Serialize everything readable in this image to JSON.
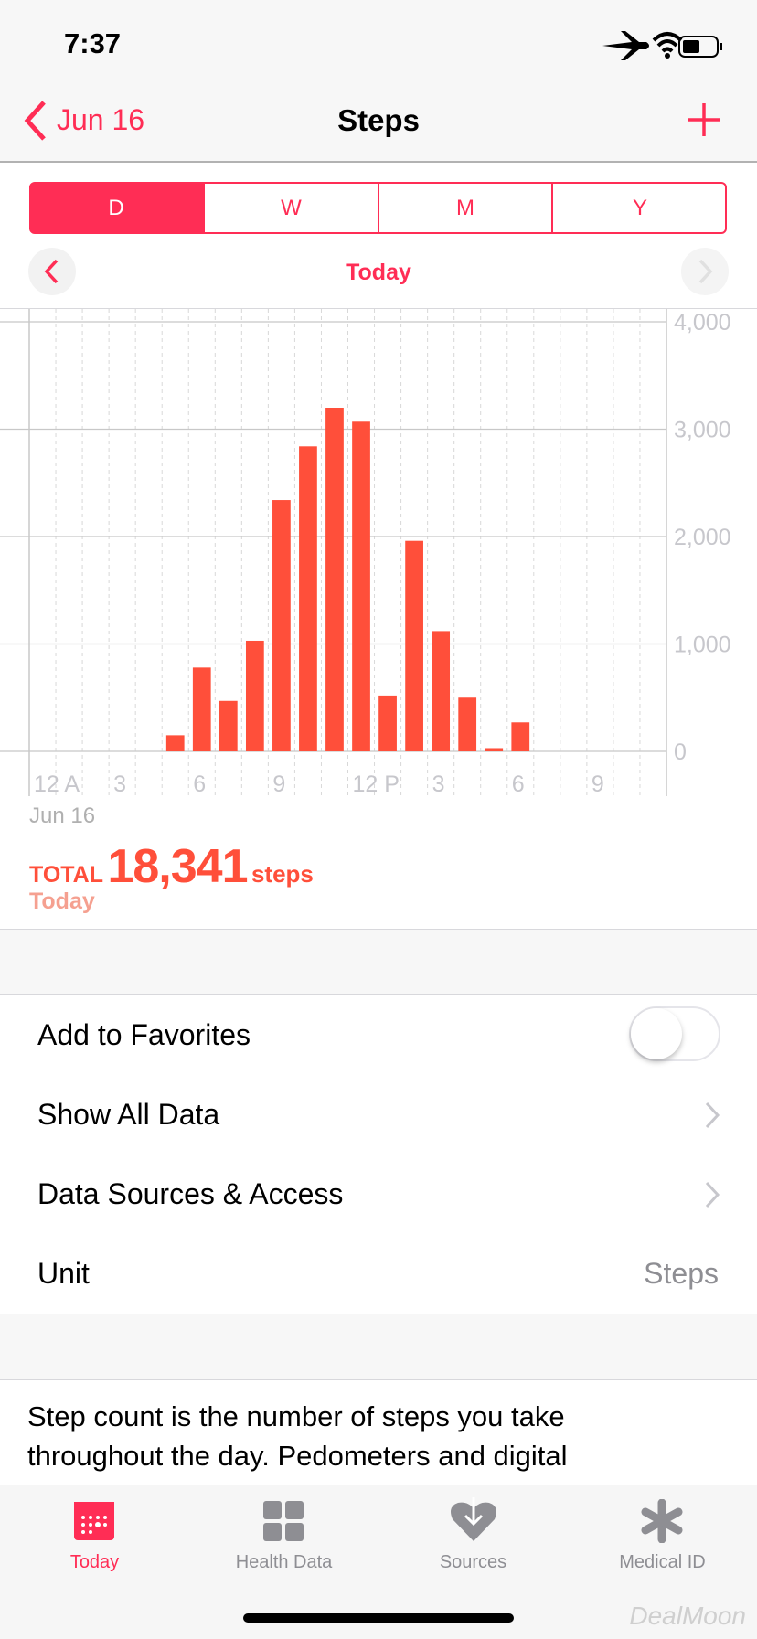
{
  "status": {
    "time": "7:37"
  },
  "nav": {
    "back": "Jun 16",
    "title": "Steps"
  },
  "segments": [
    "D",
    "W",
    "M",
    "Y"
  ],
  "period": "Today",
  "chart_data": {
    "type": "bar",
    "color": "#ff4f3a",
    "x": [
      5,
      6,
      7,
      8,
      9,
      10,
      11,
      12,
      13,
      14,
      15,
      16,
      17,
      18
    ],
    "values": [
      150,
      780,
      470,
      1030,
      2340,
      2840,
      3200,
      3070,
      520,
      1960,
      1120,
      500,
      30,
      270
    ],
    "xlim": [
      0,
      24
    ],
    "xticks": [
      {
        "value": 0,
        "label": "12 A"
      },
      3,
      6,
      9,
      {
        "value": 12,
        "label": "12 P"
      },
      {
        "value": 15,
        "label": "3"
      },
      {
        "value": 18,
        "label": "6"
      },
      {
        "value": 21,
        "label": "9"
      }
    ],
    "ylim": [
      0,
      4000
    ],
    "yticks": [
      0,
      {
        "value": 1000,
        "label": "1,000"
      },
      {
        "value": 2000,
        "label": "2,000"
      },
      {
        "value": 3000,
        "label": "3,000"
      },
      {
        "value": 4000,
        "label": "4,000"
      }
    ],
    "grid": true
  },
  "chart_date": "Jun 16",
  "summary": {
    "total_label": "TOTAL",
    "total": "18,341",
    "unit": "steps",
    "period": "Today"
  },
  "settings": [
    {
      "label": "Add to Favorites"
    },
    {
      "label": "Show All Data"
    },
    {
      "label": "Data Sources & Access"
    },
    {
      "label": "Unit",
      "value": "Steps"
    }
  ],
  "description": "Step count is the number of steps you take throughout the day. Pedometers and digital",
  "tabs": [
    "Today",
    "Health Data",
    "Sources",
    "Medical ID"
  ],
  "watermark": "DealMoon"
}
